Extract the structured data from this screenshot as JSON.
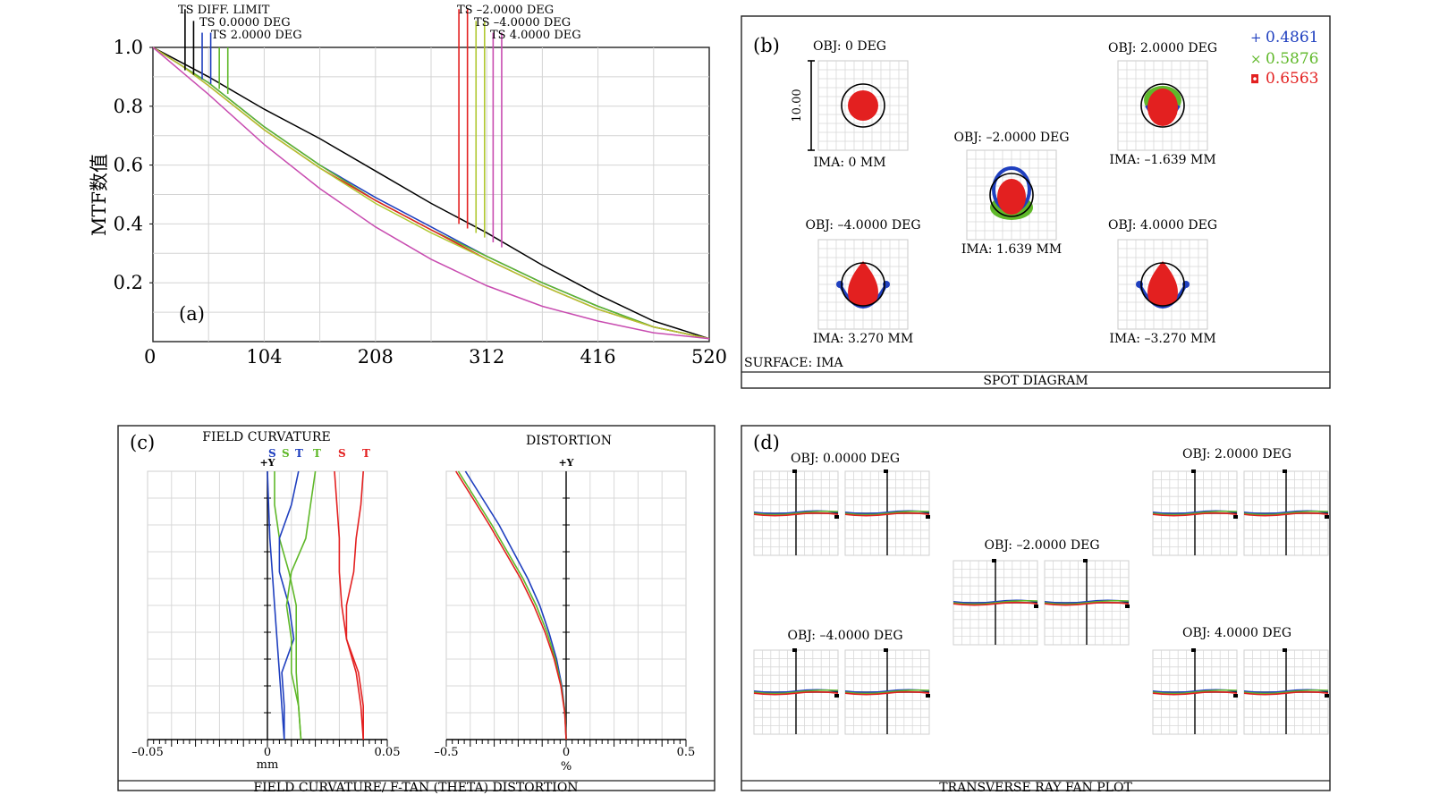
{
  "chart_data": [
    {
      "type": "line",
      "panel": "(a)",
      "ylabel": "MTF数值",
      "xlabel": "",
      "xlim": [
        0,
        520
      ],
      "ylim": [
        0,
        1.0
      ],
      "xticks": [
        0,
        104,
        208,
        312,
        416,
        520
      ],
      "yticks": [
        0.2,
        0.4,
        0.6,
        0.8,
        1.0
      ],
      "ytick_labels": [
        "0.2",
        "0.4",
        "0.6",
        "0.8",
        "1.0"
      ],
      "legend": [
        "TS  DIFF. LIMIT",
        "TS 0.0000 DEG",
        "TS 2.0000  DEG",
        "TS –2.0000 DEG",
        "TS  –4.0000  DEG",
        "TS 4.0000  DEG"
      ],
      "x": [
        0,
        26,
        52,
        104,
        156,
        208,
        260,
        312,
        364,
        416,
        468,
        520
      ],
      "series": [
        {
          "name": "DIFF. LIMIT",
          "color": "#000000",
          "values": [
            1.0,
            0.95,
            0.9,
            0.79,
            0.69,
            0.58,
            0.47,
            0.37,
            0.26,
            0.16,
            0.07,
            0.01
          ]
        },
        {
          "name": "0.0000 DEG",
          "color": "#1f3fbf",
          "values": [
            1.0,
            0.94,
            0.88,
            0.73,
            0.6,
            0.49,
            0.39,
            0.29,
            0.2,
            0.12,
            0.05,
            0.01
          ]
        },
        {
          "name": "2.0000 DEG",
          "color": "#5fb829",
          "values": [
            1.0,
            0.94,
            0.88,
            0.73,
            0.6,
            0.48,
            0.38,
            0.29,
            0.2,
            0.12,
            0.05,
            0.01
          ]
        },
        {
          "name": "-2.0000 DEG",
          "color": "#e32020",
          "values": [
            1.0,
            0.94,
            0.87,
            0.72,
            0.59,
            0.48,
            0.38,
            0.28,
            0.19,
            0.11,
            0.05,
            0.01
          ]
        },
        {
          "name": "-4.0000 DEG",
          "color": "#b0c830",
          "values": [
            1.0,
            0.94,
            0.87,
            0.72,
            0.59,
            0.47,
            0.37,
            0.28,
            0.19,
            0.11,
            0.05,
            0.01
          ]
        },
        {
          "name": "4.0000 DEG",
          "color": "#c84cb0",
          "values": [
            1.0,
            0.92,
            0.84,
            0.67,
            0.52,
            0.39,
            0.28,
            0.19,
            0.12,
            0.07,
            0.03,
            0.01
          ]
        }
      ],
      "annotations": [
        "(a)"
      ],
      "marker_lines": [
        {
          "x": 30,
          "color": "#000000",
          "top": 1.13
        },
        {
          "x": 38,
          "color": "#000000",
          "top": 1.09
        },
        {
          "x": 46,
          "color": "#1f3fbf",
          "top": 1.05
        },
        {
          "x": 54,
          "color": "#1f3fbf",
          "top": 1.05
        },
        {
          "x": 62,
          "color": "#5fb829",
          "top": 1.0
        },
        {
          "x": 70,
          "color": "#5fb829",
          "top": 1.0
        },
        {
          "x": 286,
          "color": "#e32020",
          "top": 1.13
        },
        {
          "x": 294,
          "color": "#e32020",
          "top": 1.13
        },
        {
          "x": 302,
          "color": "#b0c830",
          "top": 1.09
        },
        {
          "x": 310,
          "color": "#b0c830",
          "top": 1.09
        },
        {
          "x": 318,
          "color": "#c84cb0",
          "top": 1.05
        },
        {
          "x": 326,
          "color": "#c84cb0",
          "top": 1.05
        }
      ]
    },
    {
      "type": "scatter",
      "panel": "(b)",
      "title": "SPOT DIAGRAM",
      "surface": "SURFACE: IMA",
      "scale_label": "10.00",
      "legend": [
        {
          "marker": "+",
          "label": "0.4861",
          "color": "#1f3fbf"
        },
        {
          "marker": "×",
          "label": "0.5876",
          "color": "#5fb829"
        },
        {
          "marker": "◘",
          "label": "0.6563",
          "color": "#e32020"
        }
      ],
      "spots": [
        {
          "obj": "OBJ: 0 DEG",
          "ima": "IMA: 0 MM"
        },
        {
          "obj": "OBJ: 2.0000 DEG",
          "ima": "IMA: –1.639 MM"
        },
        {
          "obj": "OBJ: –2.0000 DEG",
          "ima": "IMA: 1.639 MM"
        },
        {
          "obj": "OBJ: –4.0000 DEG",
          "ima": "IMA: 3.270 MM"
        },
        {
          "obj": "OBJ: 4.0000 DEG",
          "ima": "IMA: –3.270 MM"
        }
      ]
    },
    {
      "type": "line",
      "panel": "(c)",
      "title": "FIELD CURVATURE/ F-TAN (THETA) DISTORTION",
      "field_curvature": {
        "title": "FIELD CURVATURE",
        "xlim": [
          -0.05,
          0.05
        ],
        "xtick_labels": [
          "–0.05",
          "0",
          "0.05"
        ],
        "xunit": "mm",
        "axis_label": "+Y",
        "legend": [
          {
            "label": "S",
            "color": "#1f3fbf"
          },
          {
            "label": "S",
            "color": "#5fb829"
          },
          {
            "label": "T",
            "color": "#1f3fbf"
          },
          {
            "label": "T",
            "color": "#5fb829"
          },
          {
            "label": "S",
            "color": "#e32020"
          },
          {
            "label": "T",
            "color": "#e32020"
          }
        ],
        "y": [
          0,
          0.125,
          0.25,
          0.375,
          0.5,
          0.625,
          0.75,
          0.875,
          1.0
        ],
        "series": [
          {
            "name": "S 0.4861",
            "color": "#1f3fbf",
            "values": [
              0.007,
              0.006,
              0.005,
              0.004,
              0.003,
              0.002,
              0.001,
              0.0005,
              0.0
            ]
          },
          {
            "name": "S 0.5876",
            "color": "#5fb829",
            "values": [
              0.014,
              0.013,
              0.012,
              0.012,
              0.012,
              0.009,
              0.005,
              0.003,
              0.003
            ]
          },
          {
            "name": "S 0.6563",
            "color": "#e32020",
            "values": [
              0.04,
              0.039,
              0.037,
              0.033,
              0.031,
              0.03,
              0.03,
              0.029,
              0.028
            ]
          },
          {
            "name": "T 0.4861",
            "color": "#1f3fbf",
            "values": [
              0.007,
              0.007,
              0.006,
              0.011,
              0.009,
              0.005,
              0.005,
              0.01,
              0.013
            ]
          },
          {
            "name": "T 0.5876",
            "color": "#5fb829",
            "values": [
              0.014,
              0.013,
              0.01,
              0.01,
              0.008,
              0.01,
              0.016,
              0.018,
              0.02
            ]
          },
          {
            "name": "T 0.6563",
            "color": "#e32020",
            "values": [
              0.04,
              0.04,
              0.038,
              0.033,
              0.033,
              0.036,
              0.037,
              0.039,
              0.04
            ]
          }
        ]
      },
      "distortion": {
        "title": "DISTORTION",
        "xlim": [
          -0.5,
          0.5
        ],
        "xtick_labels": [
          "–0.5",
          "0",
          "0.5"
        ],
        "xunit": "%",
        "axis_label": "+Y",
        "y": [
          0,
          0.1,
          0.2,
          0.3,
          0.4,
          0.5,
          0.6,
          0.7,
          0.8,
          0.9,
          1.0
        ],
        "series": [
          {
            "name": "0.4861",
            "color": "#1f3fbf",
            "values": [
              0.0,
              -0.005,
              -0.018,
              -0.04,
              -0.072,
              -0.11,
              -0.16,
              -0.22,
              -0.28,
              -0.35,
              -0.42
            ]
          },
          {
            "name": "0.5876",
            "color": "#5fb829",
            "values": [
              0.0,
              -0.005,
              -0.02,
              -0.045,
              -0.08,
              -0.125,
              -0.18,
              -0.245,
              -0.31,
              -0.38,
              -0.45
            ]
          },
          {
            "name": "0.6563",
            "color": "#e32020",
            "values": [
              0.0,
              -0.006,
              -0.022,
              -0.05,
              -0.088,
              -0.135,
              -0.19,
              -0.255,
              -0.32,
              -0.39,
              -0.46
            ]
          }
        ]
      }
    },
    {
      "type": "line",
      "panel": "(d)",
      "title": "TRANSVERSE RAY FAN PLOT",
      "fans": [
        {
          "obj": "OBJ: 0.0000 DEG"
        },
        {
          "obj": "OBJ: 2.0000 DEG"
        },
        {
          "obj": "OBJ: –2.0000 DEG"
        },
        {
          "obj": "OBJ: –4.0000 DEG"
        },
        {
          "obj": "OBJ: 4.0000 DEG"
        }
      ],
      "colors": [
        "#1f3fbf",
        "#5fb829",
        "#e32020"
      ]
    }
  ]
}
